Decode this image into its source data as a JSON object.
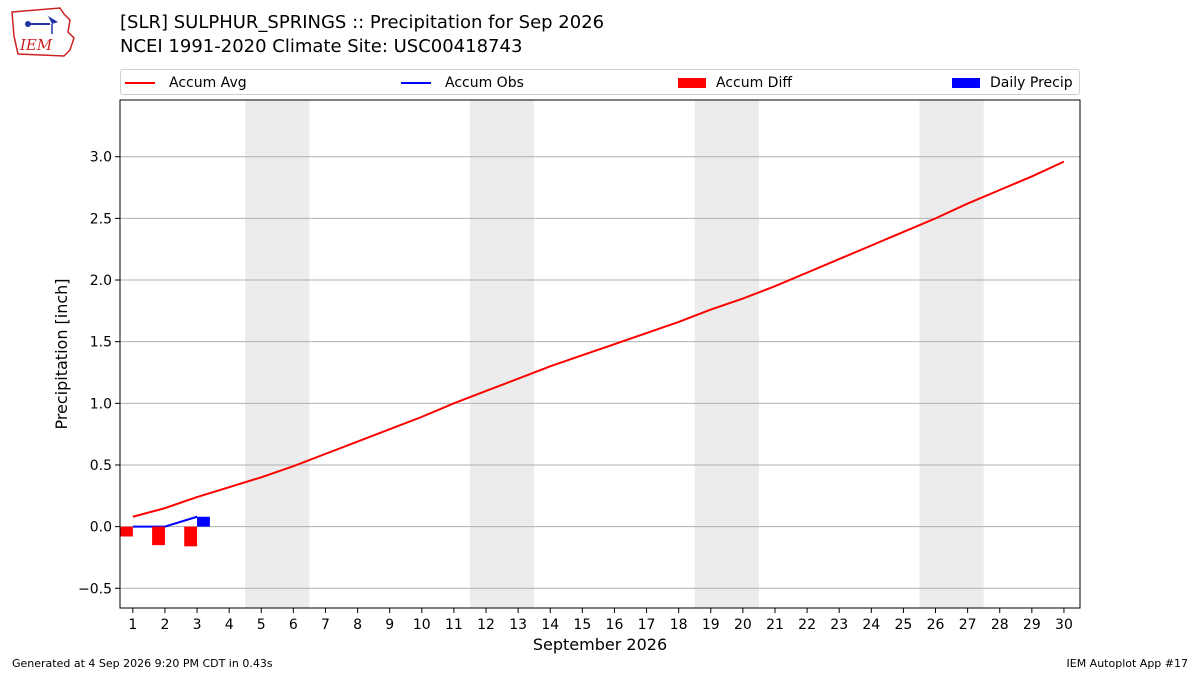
{
  "header": {
    "title_line1": "[SLR] SULPHUR_SPRINGS :: Precipitation for Sep 2026",
    "title_line2": "NCEI 1991-2020 Climate Site: USC00418743",
    "logo_text": "IEM"
  },
  "legend": {
    "accum_avg": "Accum Avg",
    "accum_obs": "Accum Obs",
    "accum_diff": "Accum Diff",
    "daily_precip": "Daily Precip"
  },
  "footer": {
    "generated": "Generated at 4 Sep 2026 9:20 PM CDT in 0.43s",
    "app": "IEM Autoplot App #17"
  },
  "colors": {
    "accum_avg": "#ff0000",
    "accum_obs": "#0000ff",
    "accum_diff": "#ff0000",
    "daily_precip": "#0000ff",
    "weekend_shade": "#ececec",
    "grid": "#b0b0b0"
  },
  "chart_data": {
    "type": "line",
    "xlabel": "September 2026",
    "ylabel": "Precipitation [inch]",
    "xlim": [
      0.6,
      30.5
    ],
    "ylim": [
      -0.66,
      3.46
    ],
    "x_ticks": [
      1,
      2,
      3,
      4,
      5,
      6,
      7,
      8,
      9,
      10,
      11,
      12,
      13,
      14,
      15,
      16,
      17,
      18,
      19,
      20,
      21,
      22,
      23,
      24,
      25,
      26,
      27,
      28,
      29,
      30
    ],
    "y_ticks": [
      -0.5,
      0.0,
      0.5,
      1.0,
      1.5,
      2.0,
      2.5,
      3.0
    ],
    "y_tick_labels": [
      "−0.5",
      "0.0",
      "0.5",
      "1.0",
      "1.5",
      "2.0",
      "2.5",
      "3.0"
    ],
    "grid": "horizontal",
    "legend_position": "top",
    "weekend_days": [
      [
        5,
        6
      ],
      [
        12,
        13
      ],
      [
        19,
        20
      ],
      [
        26,
        27
      ]
    ],
    "series": [
      {
        "name": "Accum Avg",
        "kind": "line",
        "x": [
          1,
          2,
          3,
          4,
          5,
          6,
          7,
          8,
          9,
          10,
          11,
          12,
          13,
          14,
          15,
          16,
          17,
          18,
          19,
          20,
          21,
          22,
          23,
          24,
          25,
          26,
          27,
          28,
          29,
          30
        ],
        "values": [
          0.08,
          0.15,
          0.24,
          0.32,
          0.4,
          0.49,
          0.59,
          0.69,
          0.79,
          0.89,
          1.0,
          1.1,
          1.2,
          1.3,
          1.39,
          1.48,
          1.57,
          1.66,
          1.76,
          1.85,
          1.95,
          2.06,
          2.17,
          2.28,
          2.39,
          2.5,
          2.62,
          2.73,
          2.84,
          2.96
        ]
      },
      {
        "name": "Accum Obs",
        "kind": "line",
        "x": [
          1,
          2,
          3
        ],
        "values": [
          0.0,
          0.0,
          0.08
        ]
      },
      {
        "name": "Accum Diff",
        "kind": "bar",
        "x": [
          1,
          2,
          3
        ],
        "values": [
          -0.08,
          -0.15,
          -0.16
        ],
        "offset": -0.2
      },
      {
        "name": "Daily Precip",
        "kind": "bar",
        "x": [
          3
        ],
        "values": [
          0.08
        ],
        "offset": 0.2
      }
    ]
  }
}
